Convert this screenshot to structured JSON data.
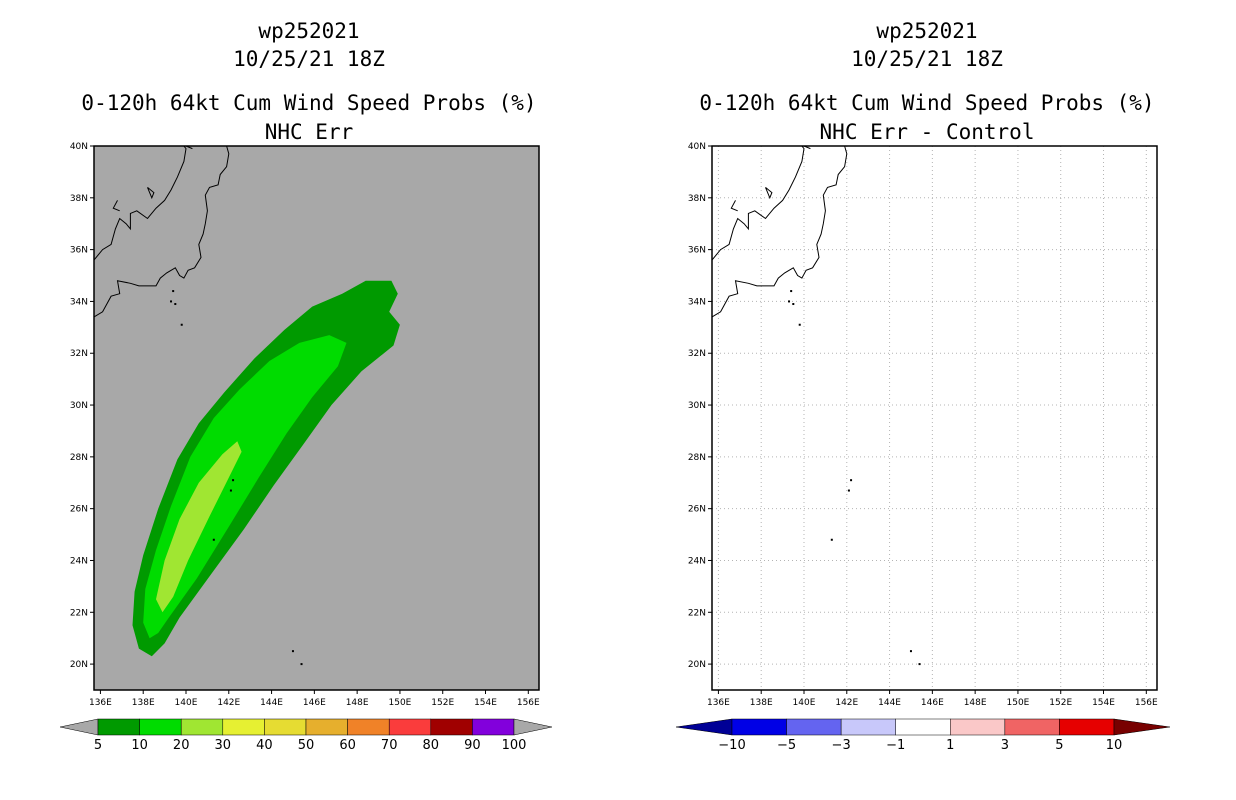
{
  "chart_data": [
    {
      "type": "heatmap",
      "title_lines": [
        "wp252021",
        "10/25/21 18Z",
        "0-120h 64kt Cum Wind Speed Probs (%)",
        "NHC Err"
      ],
      "x_ticks": [
        "136E",
        "138E",
        "140E",
        "142E",
        "144E",
        "146E",
        "148E",
        "150E",
        "152E",
        "154E",
        "156E"
      ],
      "y_ticks": [
        "20N",
        "22N",
        "24N",
        "26N",
        "28N",
        "30N",
        "32N",
        "34N",
        "36N",
        "38N",
        "40N"
      ],
      "xlim": [
        135.7,
        156.5
      ],
      "ylim": [
        19.0,
        40.0
      ],
      "background_color": "#a8a8a8",
      "grid": false,
      "colorbar": {
        "labels": [
          "5",
          "10",
          "20",
          "30",
          "40",
          "50",
          "60",
          "70",
          "80",
          "90",
          "100"
        ],
        "colors": [
          "#009a00",
          "#00dc00",
          "#a0e632",
          "#e6f032",
          "#e6dc32",
          "#e6af2d",
          "#f08228",
          "#fa3c3c",
          "#a00000",
          "#8200dc"
        ],
        "under_color": "#a8a8a8",
        "over_color": "#a8a8a8"
      },
      "contours": [
        {
          "level": "5-10",
          "color": "#009a00",
          "points": [
            [
              138.4,
              20.3
            ],
            [
              137.8,
              20.6
            ],
            [
              137.5,
              21.5
            ],
            [
              137.6,
              22.8
            ],
            [
              138.0,
              24.2
            ],
            [
              138.7,
              26.0
            ],
            [
              139.6,
              27.9
            ],
            [
              140.6,
              29.3
            ],
            [
              141.8,
              30.5
            ],
            [
              143.2,
              31.8
            ],
            [
              144.6,
              32.9
            ],
            [
              145.9,
              33.8
            ],
            [
              147.3,
              34.3
            ],
            [
              148.4,
              34.8
            ],
            [
              149.6,
              34.8
            ],
            [
              149.9,
              34.3
            ],
            [
              149.5,
              33.6
            ],
            [
              150.0,
              33.1
            ],
            [
              149.7,
              32.3
            ],
            [
              148.2,
              31.3
            ],
            [
              146.8,
              30.0
            ],
            [
              145.5,
              28.5
            ],
            [
              144.1,
              26.9
            ],
            [
              142.7,
              25.2
            ],
            [
              141.2,
              23.5
            ],
            [
              139.7,
              21.8
            ],
            [
              139.0,
              20.8
            ]
          ]
        },
        {
          "level": "10-20",
          "color": "#00dc00",
          "points": [
            [
              138.3,
              21.0
            ],
            [
              138.0,
              21.6
            ],
            [
              138.1,
              22.9
            ],
            [
              138.6,
              24.4
            ],
            [
              139.3,
              26.1
            ],
            [
              140.2,
              28.0
            ],
            [
              141.3,
              29.5
            ],
            [
              142.5,
              30.6
            ],
            [
              143.9,
              31.7
            ],
            [
              145.3,
              32.4
            ],
            [
              146.7,
              32.7
            ],
            [
              147.5,
              32.4
            ],
            [
              147.1,
              31.5
            ],
            [
              145.9,
              30.3
            ],
            [
              144.7,
              28.9
            ],
            [
              143.4,
              27.2
            ],
            [
              142.0,
              25.3
            ],
            [
              140.5,
              23.3
            ],
            [
              139.2,
              21.8
            ],
            [
              138.7,
              21.2
            ]
          ]
        },
        {
          "level": "20-30",
          "color": "#a0e632",
          "points": [
            [
              138.9,
              22.0
            ],
            [
              138.6,
              22.5
            ],
            [
              139.0,
              24.0
            ],
            [
              139.7,
              25.6
            ],
            [
              140.6,
              27.0
            ],
            [
              141.7,
              28.1
            ],
            [
              142.4,
              28.6
            ],
            [
              142.6,
              28.2
            ],
            [
              142.0,
              27.2
            ],
            [
              141.1,
              25.7
            ],
            [
              140.1,
              24.0
            ],
            [
              139.4,
              22.6
            ]
          ]
        }
      ]
    },
    {
      "type": "heatmap",
      "title_lines": [
        "wp252021",
        "10/25/21 18Z",
        "0-120h 64kt Cum Wind Speed Probs (%)",
        "NHC Err - Control"
      ],
      "x_ticks": [
        "136E",
        "138E",
        "140E",
        "142E",
        "144E",
        "146E",
        "148E",
        "150E",
        "152E",
        "154E",
        "156E"
      ],
      "y_ticks": [
        "20N",
        "22N",
        "24N",
        "26N",
        "28N",
        "30N",
        "32N",
        "34N",
        "36N",
        "38N",
        "40N"
      ],
      "xlim": [
        135.7,
        156.5
      ],
      "ylim": [
        19.0,
        40.0
      ],
      "background_color": "#ffffff",
      "grid": true,
      "colorbar": {
        "labels": [
          "-10",
          "-5",
          "-3",
          "-1",
          "1",
          "3",
          "5",
          "10"
        ],
        "colors": [
          "#0000e6",
          "#6464f0",
          "#c8c8fa",
          "#ffffff",
          "#fac8c8",
          "#f06464",
          "#e60000"
        ],
        "under_color": "#000096",
        "over_color": "#780000"
      },
      "contours": []
    }
  ]
}
